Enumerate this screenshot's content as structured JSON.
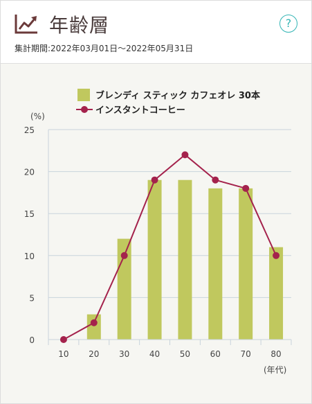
{
  "header": {
    "title": "年齢層",
    "period": "集計期間:2022年03月01日～2022年05月31日",
    "help_label": "?",
    "title_icon": "line-chart-icon"
  },
  "colors": {
    "bar": "#c0c85e",
    "line": "#a4224c",
    "help": "#33b5b5",
    "grid": "#c8d3dc"
  },
  "chart_data": {
    "type": "bar",
    "categories": [
      "10",
      "20",
      "30",
      "40",
      "50",
      "60",
      "70",
      "80"
    ],
    "series": [
      {
        "name": "ブレンディ スティック カフェオレ 30本",
        "kind": "bar",
        "values": [
          0,
          3,
          12,
          19,
          19,
          18,
          18,
          11
        ]
      },
      {
        "name": "インスタントコーヒー",
        "kind": "line",
        "values": [
          0,
          2,
          10,
          19,
          22,
          19,
          18,
          10
        ]
      }
    ],
    "ylabel": "(%)",
    "xlabel": "(年代)",
    "ylim": [
      0,
      25
    ],
    "yticks": [
      0,
      5,
      10,
      15,
      20,
      25
    ],
    "grid": true,
    "legend_position": "top-right"
  }
}
